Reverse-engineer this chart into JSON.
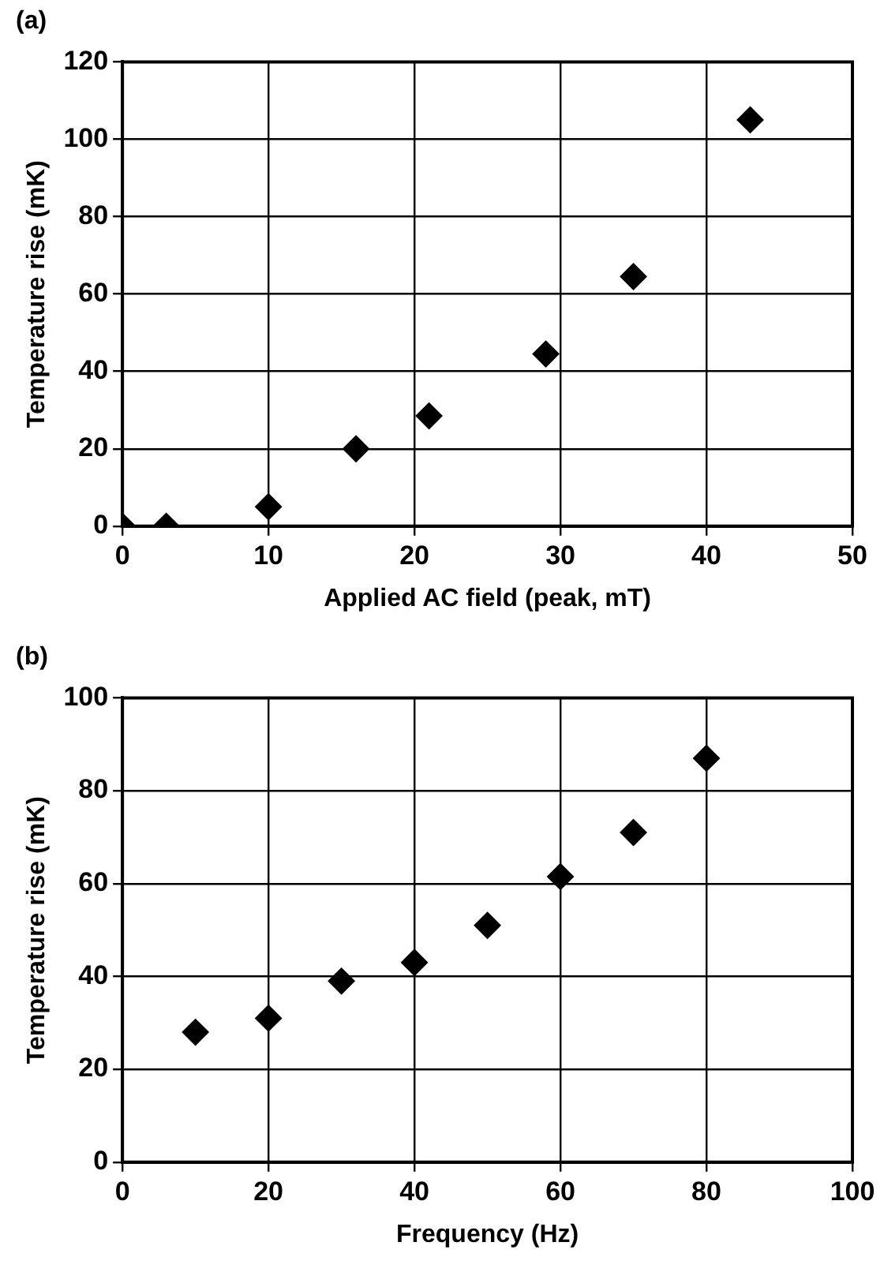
{
  "chart_data": [
    {
      "type": "scatter",
      "title": "(a)",
      "xlabel": "Applied AC field (peak, mT)",
      "ylabel": "Temperature rise (mK)",
      "x": [
        0,
        3,
        10,
        16,
        21,
        29,
        35,
        43
      ],
      "values": [
        0,
        0,
        5,
        20,
        28.5,
        44.5,
        64.5,
        105
      ],
      "color": "#000000",
      "marker": "diamond",
      "xlim": [
        0,
        50
      ],
      "xticks": [
        0,
        10,
        20,
        30,
        40,
        50
      ],
      "ylim": [
        0,
        120
      ],
      "yticks": [
        0,
        20,
        40,
        60,
        80,
        100,
        120
      ],
      "grid": true,
      "legend": false
    },
    {
      "type": "scatter",
      "title": "(b)",
      "xlabel": "Frequency (Hz)",
      "ylabel": "Temperature rise (mK)",
      "x": [
        10,
        20,
        30,
        40,
        50,
        60,
        70,
        80
      ],
      "values": [
        28,
        31,
        39,
        43,
        51,
        61.5,
        71,
        87
      ],
      "color": "#000000",
      "marker": "diamond",
      "xlim": [
        0,
        100
      ],
      "xticks": [
        0,
        20,
        40,
        60,
        80,
        100
      ],
      "ylim": [
        0,
        100
      ],
      "yticks": [
        0,
        20,
        40,
        60,
        80,
        100
      ],
      "grid": true,
      "legend": false
    }
  ]
}
